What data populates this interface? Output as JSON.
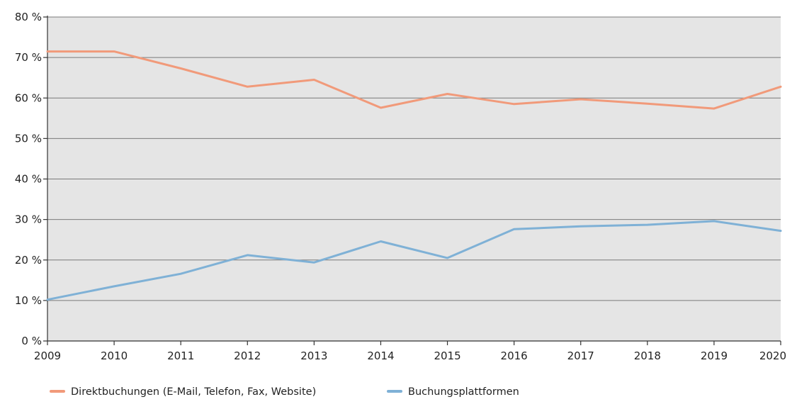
{
  "chart_data": {
    "type": "line",
    "title": "",
    "xlabel": "",
    "ylabel": "",
    "x": [
      "2009",
      "2010",
      "2011",
      "2012",
      "2013",
      "2014",
      "2015",
      "2016",
      "2017",
      "2018",
      "2019",
      "2020"
    ],
    "ylim": [
      0,
      80
    ],
    "yticks": [
      0,
      10,
      20,
      30,
      40,
      50,
      60,
      70,
      80
    ],
    "ytick_labels": [
      "0 %",
      "10 %",
      "20 %",
      "30 %",
      "40 %",
      "50 %",
      "60 %",
      "70 %",
      "80 %"
    ],
    "grid": "horizontal",
    "plot_background": "#e5e5e5",
    "legend_position": "bottom-left",
    "series": [
      {
        "name": "Direktbuchungen (E-Mail, Telefon, Fax, Website)",
        "color": "#f19a7a",
        "values": [
          71.5,
          71.5,
          67.3,
          62.8,
          64.5,
          57.6,
          61.0,
          58.5,
          59.7,
          58.6,
          57.4,
          62.8
        ]
      },
      {
        "name": "Buchungsplattformen",
        "color": "#7fb1d6",
        "values": [
          10.2,
          13.5,
          16.6,
          21.2,
          19.4,
          24.6,
          20.5,
          27.6,
          28.3,
          28.7,
          29.6,
          27.2
        ]
      }
    ]
  }
}
